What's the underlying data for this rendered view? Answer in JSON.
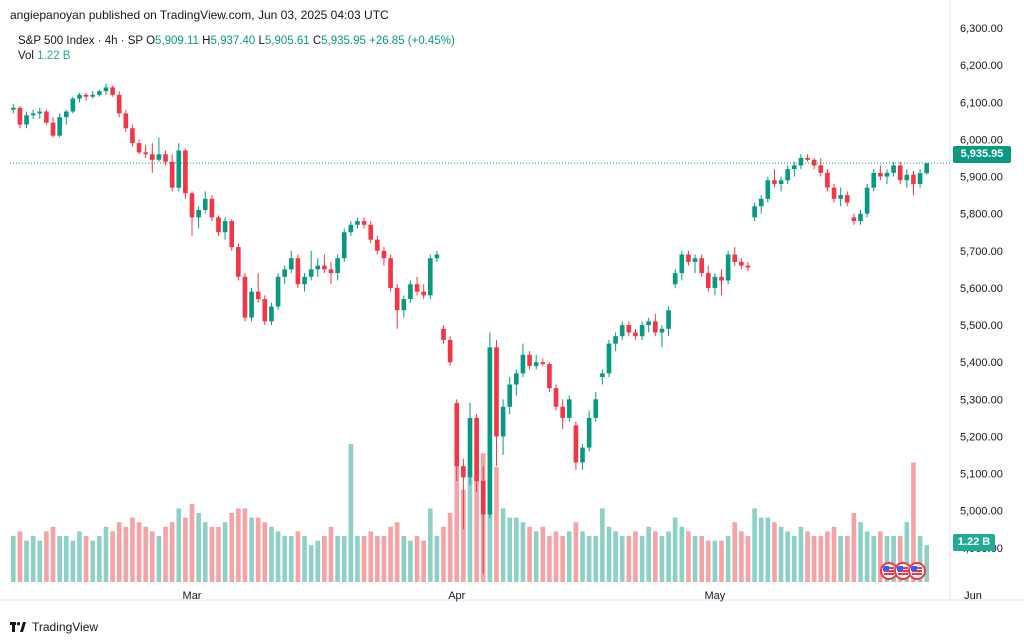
{
  "header": {
    "credit": "angiepanoyan published on TradingView.com, Jun 03, 2025 04:03 UTC"
  },
  "legend": {
    "symbol": "S&P 500 Index · 4h · SP",
    "open_label": "O",
    "open": "5,909.11",
    "high_label": "H",
    "high": "5,937.40",
    "low_label": "L",
    "low": "5,905.61",
    "close_label": "C",
    "close": "5,935.95",
    "change": "+26.85 (+0.45%)",
    "volume_label": "Vol",
    "volume": "1.22 B"
  },
  "price_tag": "5,935.95",
  "volume_tag": "1.22 B",
  "footer": {
    "brand": "TradingView"
  },
  "colors": {
    "up": "#089981",
    "down": "#f23645",
    "vol_up": "#8fd0c6",
    "vol_down": "#f4a4a6",
    "last_line": "#089981"
  },
  "icons": [
    "tradingview-logo-icon",
    "us-flag-icon"
  ],
  "chart_data": {
    "type": "candlestick",
    "ylim": [
      4800,
      6300
    ],
    "y_ticks": [
      "4,900.00",
      "5,000.00",
      "5,100.00",
      "5,200.00",
      "5,300.00",
      "5,400.00",
      "5,500.00",
      "5,600.00",
      "5,700.00",
      "5,800.00",
      "5,900.00",
      "6,000.00",
      "6,100.00",
      "6,200.00",
      "6,300.00"
    ],
    "x_ticks": [
      {
        "label": "Mar",
        "index": 27
      },
      {
        "label": "Apr",
        "index": 67
      },
      {
        "label": "May",
        "index": 106
      },
      {
        "label": "Jun",
        "index": 145
      }
    ],
    "last_price": 5935.95,
    "candles": [
      [
        6080,
        6095,
        6070,
        6085,
        1.0
      ],
      [
        6085,
        6090,
        6030,
        6040,
        1.1
      ],
      [
        6040,
        6075,
        6030,
        6065,
        0.9
      ],
      [
        6065,
        6080,
        6055,
        6070,
        1.0
      ],
      [
        6070,
        6085,
        6055,
        6075,
        0.9
      ],
      [
        6075,
        6080,
        6040,
        6045,
        1.1
      ],
      [
        6045,
        6060,
        6005,
        6010,
        1.2
      ],
      [
        6010,
        6070,
        6005,
        6060,
        1.0
      ],
      [
        6060,
        6080,
        6040,
        6075,
        1.0
      ],
      [
        6075,
        6115,
        6070,
        6110,
        0.9
      ],
      [
        6110,
        6125,
        6100,
        6120,
        1.1
      ],
      [
        6120,
        6125,
        6105,
        6115,
        1.0
      ],
      [
        6115,
        6130,
        6110,
        6120,
        0.9
      ],
      [
        6120,
        6135,
        6115,
        6130,
        1.0
      ],
      [
        6130,
        6150,
        6120,
        6140,
        1.2
      ],
      [
        6140,
        6145,
        6115,
        6120,
        1.1
      ],
      [
        6120,
        6130,
        6060,
        6070,
        1.3
      ],
      [
        6070,
        6080,
        6020,
        6030,
        1.2
      ],
      [
        6030,
        6040,
        5980,
        5990,
        1.4
      ],
      [
        5990,
        6000,
        5960,
        5965,
        1.3
      ],
      [
        5965,
        5985,
        5950,
        5960,
        1.2
      ],
      [
        5960,
        5990,
        5910,
        5945,
        1.1
      ],
      [
        5945,
        6005,
        5940,
        5960,
        1.0
      ],
      [
        5960,
        5970,
        5930,
        5940,
        1.2
      ],
      [
        5940,
        5960,
        5860,
        5870,
        1.3
      ],
      [
        5870,
        5990,
        5860,
        5970,
        1.6
      ],
      [
        5970,
        5975,
        5840,
        5855,
        1.4
      ],
      [
        5855,
        5860,
        5740,
        5790,
        1.7
      ],
      [
        5790,
        5820,
        5760,
        5810,
        1.5
      ],
      [
        5810,
        5860,
        5800,
        5840,
        1.3
      ],
      [
        5840,
        5850,
        5780,
        5790,
        1.2
      ],
      [
        5790,
        5795,
        5740,
        5750,
        1.2
      ],
      [
        5750,
        5790,
        5730,
        5780,
        1.3
      ],
      [
        5780,
        5785,
        5700,
        5710,
        1.5
      ],
      [
        5710,
        5720,
        5620,
        5630,
        1.6
      ],
      [
        5630,
        5640,
        5510,
        5520,
        1.6
      ],
      [
        5520,
        5600,
        5510,
        5590,
        1.4
      ],
      [
        5590,
        5640,
        5560,
        5570,
        1.4
      ],
      [
        5570,
        5580,
        5500,
        5510,
        1.3
      ],
      [
        5510,
        5560,
        5500,
        5550,
        1.2
      ],
      [
        5550,
        5640,
        5540,
        5630,
        1.1
      ],
      [
        5630,
        5660,
        5610,
        5650,
        1.0
      ],
      [
        5650,
        5700,
        5640,
        5680,
        1.0
      ],
      [
        5680,
        5690,
        5600,
        5610,
        1.1
      ],
      [
        5610,
        5640,
        5590,
        5630,
        1.0
      ],
      [
        5630,
        5700,
        5620,
        5650,
        0.8
      ],
      [
        5650,
        5680,
        5630,
        5660,
        0.9
      ],
      [
        5660,
        5690,
        5640,
        5650,
        1.0
      ],
      [
        5650,
        5670,
        5610,
        5640,
        1.2
      ],
      [
        5640,
        5690,
        5620,
        5680,
        1.0
      ],
      [
        5680,
        5760,
        5670,
        5750,
        1.0
      ],
      [
        5750,
        5780,
        5740,
        5770,
        3.0
      ],
      [
        5770,
        5790,
        5760,
        5780,
        1.0
      ],
      [
        5780,
        5790,
        5760,
        5770,
        1.0
      ],
      [
        5770,
        5780,
        5720,
        5730,
        1.1
      ],
      [
        5730,
        5740,
        5690,
        5700,
        1.0
      ],
      [
        5700,
        5710,
        5660,
        5680,
        1.0
      ],
      [
        5680,
        5690,
        5590,
        5600,
        1.2
      ],
      [
        5600,
        5610,
        5490,
        5540,
        1.3
      ],
      [
        5540,
        5580,
        5520,
        5570,
        1.0
      ],
      [
        5570,
        5620,
        5560,
        5610,
        0.9
      ],
      [
        5610,
        5630,
        5580,
        5590,
        1.0
      ],
      [
        5590,
        5610,
        5570,
        5580,
        0.9
      ],
      [
        5580,
        5690,
        5570,
        5680,
        1.6
      ],
      [
        5680,
        5700,
        5670,
        5690,
        1.0
      ],
      [
        5490,
        5500,
        5450,
        5460,
        1.2
      ],
      [
        5460,
        5470,
        5390,
        5400,
        1.5
      ],
      [
        5290,
        5300,
        5080,
        5120,
        2.6
      ],
      [
        5120,
        5140,
        4950,
        5090,
        2.0
      ],
      [
        5090,
        5290,
        5070,
        5250,
        2.4
      ],
      [
        5250,
        5260,
        5050,
        5080,
        2.3
      ],
      [
        5080,
        5120,
        4830,
        4990,
        2.8
      ],
      [
        4990,
        5480,
        4980,
        5440,
        2.6
      ],
      [
        5440,
        5460,
        5120,
        5200,
        2.5
      ],
      [
        5200,
        5300,
        5150,
        5280,
        1.6
      ],
      [
        5280,
        5360,
        5260,
        5340,
        1.4
      ],
      [
        5340,
        5380,
        5310,
        5370,
        1.4
      ],
      [
        5370,
        5450,
        5360,
        5420,
        1.3
      ],
      [
        5420,
        5430,
        5380,
        5390,
        1.2
      ],
      [
        5390,
        5420,
        5380,
        5400,
        1.1
      ],
      [
        5400,
        5410,
        5390,
        5395,
        1.2
      ],
      [
        5395,
        5400,
        5320,
        5330,
        1.0
      ],
      [
        5330,
        5340,
        5270,
        5280,
        1.1
      ],
      [
        5280,
        5300,
        5220,
        5250,
        1.0
      ],
      [
        5250,
        5310,
        5240,
        5300,
        1.1
      ],
      [
        5230,
        5240,
        5110,
        5130,
        1.3
      ],
      [
        5130,
        5180,
        5110,
        5170,
        1.1
      ],
      [
        5170,
        5270,
        5160,
        5250,
        1.0
      ],
      [
        5250,
        5320,
        5240,
        5300,
        1.0
      ],
      [
        5360,
        5380,
        5340,
        5370,
        1.6
      ],
      [
        5370,
        5460,
        5360,
        5450,
        1.2
      ],
      [
        5450,
        5480,
        5430,
        5470,
        1.1
      ],
      [
        5470,
        5510,
        5460,
        5500,
        1.0
      ],
      [
        5500,
        5510,
        5470,
        5480,
        1.0
      ],
      [
        5480,
        5490,
        5460,
        5470,
        1.1
      ],
      [
        5470,
        5510,
        5460,
        5500,
        1.0
      ],
      [
        5500,
        5520,
        5480,
        5510,
        1.2
      ],
      [
        5510,
        5530,
        5470,
        5480,
        1.1
      ],
      [
        5480,
        5500,
        5440,
        5490,
        1.0
      ],
      [
        5490,
        5550,
        5470,
        5540,
        1.1
      ],
      [
        5610,
        5650,
        5600,
        5640,
        1.4
      ],
      [
        5640,
        5700,
        5620,
        5690,
        1.2
      ],
      [
        5690,
        5700,
        5660,
        5670,
        1.1
      ],
      [
        5670,
        5690,
        5640,
        5680,
        1.0
      ],
      [
        5680,
        5690,
        5630,
        5640,
        1.0
      ],
      [
        5640,
        5660,
        5590,
        5600,
        0.9
      ],
      [
        5600,
        5640,
        5580,
        5630,
        0.9
      ],
      [
        5630,
        5650,
        5580,
        5620,
        0.9
      ],
      [
        5620,
        5700,
        5610,
        5690,
        1.0
      ],
      [
        5690,
        5710,
        5660,
        5670,
        1.3
      ],
      [
        5670,
        5680,
        5650,
        5660,
        1.1
      ],
      [
        5660,
        5670,
        5645,
        5655,
        1.0
      ],
      [
        5790,
        5830,
        5780,
        5820,
        1.6
      ],
      [
        5820,
        5850,
        5800,
        5840,
        1.4
      ],
      [
        5840,
        5900,
        5830,
        5890,
        1.4
      ],
      [
        5890,
        5920,
        5870,
        5880,
        1.3
      ],
      [
        5880,
        5900,
        5860,
        5890,
        1.2
      ],
      [
        5890,
        5930,
        5880,
        5920,
        1.1
      ],
      [
        5920,
        5940,
        5900,
        5930,
        1.0
      ],
      [
        5930,
        5960,
        5920,
        5950,
        1.2
      ],
      [
        5950,
        5960,
        5940,
        5945,
        1.1
      ],
      [
        5945,
        5950,
        5920,
        5930,
        1.0
      ],
      [
        5930,
        5950,
        5900,
        5910,
        1.0
      ],
      [
        5910,
        5920,
        5860,
        5870,
        1.1
      ],
      [
        5870,
        5880,
        5830,
        5840,
        1.2
      ],
      [
        5840,
        5870,
        5820,
        5850,
        1.0
      ],
      [
        5850,
        5860,
        5820,
        5830,
        1.0
      ],
      [
        5790,
        5800,
        5770,
        5780,
        1.5
      ],
      [
        5780,
        5810,
        5770,
        5800,
        1.3
      ],
      [
        5800,
        5880,
        5790,
        5870,
        1.1
      ],
      [
        5870,
        5920,
        5860,
        5910,
        1.0
      ],
      [
        5910,
        5930,
        5890,
        5900,
        1.1
      ],
      [
        5900,
        5920,
        5880,
        5910,
        1.0
      ],
      [
        5910,
        5940,
        5900,
        5930,
        1.0
      ],
      [
        5930,
        5940,
        5880,
        5890,
        1.0
      ],
      [
        5890,
        5920,
        5870,
        5905,
        1.3
      ],
      [
        5905,
        5915,
        5850,
        5880,
        2.6
      ],
      [
        5880,
        5920,
        5870,
        5909,
        1.0
      ],
      [
        5909,
        5937,
        5905,
        5936,
        0.8
      ]
    ]
  }
}
